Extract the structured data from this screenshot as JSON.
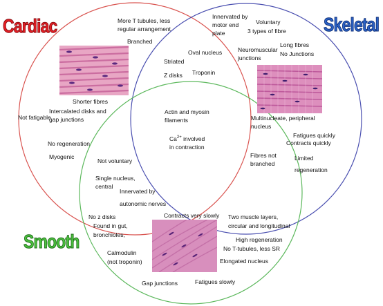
{
  "titles": {
    "cardiac": "Cardiac",
    "skeletal": "Skeletal",
    "smooth": "Smooth"
  },
  "colors": {
    "cardiac": "#d9534f",
    "skeletal": "#4a4fb0",
    "smooth": "#5cb85c"
  },
  "labels": {
    "more_t_tubules": "More T tubules, less",
    "regular_arrangement": "regular arrangement",
    "branched": "Branched",
    "innervated_motor_1": "Innervated by",
    "innervated_motor_2": "motor end",
    "innervated_motor_3": "plate",
    "voluntary": "Voluntary",
    "three_types": "3 types of fibre",
    "long_fibres": "Long fibres",
    "no_junctions": "No Junctions",
    "neuromuscular_1": "Neuromuscular",
    "neuromuscular_2": "junctions",
    "striated": "Striated",
    "oval_nucleus": "Oval nucleus",
    "z_disks": "Z disks",
    "troponin": "Troponin",
    "shorter_fibres": "Shorter fibres",
    "intercalated_1": "Intercalated disks and",
    "intercalated_2": "gap junctions",
    "not_fatigable": "Not fatigable",
    "no_regeneration": "No regeneration",
    "myogenic": "Myogenic",
    "actin_myosin_1": "Actin and myosin",
    "actin_myosin_2": "filaments",
    "ca_base": "Ca",
    "ca_sup": "2+",
    "ca_rest": " involved",
    "in_contraction": "in contraction",
    "multinucleate_1": "Multinucleate, peripheral",
    "multinucleate_2": "nucleus",
    "fatigues_quickly": "Fatigues quickly",
    "contracts_quickly": "Contracts quickly",
    "fibres_not_1": "Fibres not",
    "fibres_not_2": "branched",
    "limited_1": "Limited",
    "limited_2": "regeneration",
    "not_voluntary": "Not voluntary",
    "single_nucleus_1": "Single nucleus,",
    "single_nucleus_2": "central",
    "innervated_autonomic_1": "Innervated by",
    "innervated_autonomic_2": "autonomic nerves",
    "no_z_disks": "No z disks",
    "found_in_gut_1": "Found in gut,",
    "found_in_gut_2": "bronchioles,",
    "calmodulin_1": "Calmodulin",
    "calmodulin_2": "(not troponin)",
    "contracts_slowly": "Contracts very slowly",
    "two_layers_1": "Two muscle layers,",
    "two_layers_2": "circular and longitudinal",
    "high_regeneration": "High regeneration",
    "no_t_tubules": "No T-tubules, less SR",
    "elongated_nucleus": "Elongated nucleus",
    "gap_junctions": "Gap junctions",
    "fatigues_slowly": "Fatigues slowly"
  }
}
